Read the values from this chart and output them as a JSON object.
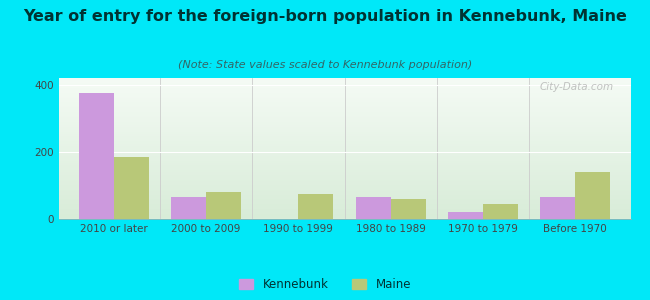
{
  "title": "Year of entry for the foreign-born population in Kennebunk, Maine",
  "subtitle": "(Note: State values scaled to Kennebunk population)",
  "categories": [
    "2010 or later",
    "2000 to 2009",
    "1990 to 1999",
    "1980 to 1989",
    "1970 to 1979",
    "Before 1970"
  ],
  "kennebunk_values": [
    375,
    65,
    0,
    65,
    20,
    65
  ],
  "maine_values": [
    185,
    80,
    75,
    60,
    45,
    140
  ],
  "kennebunk_color": "#cc99dd",
  "maine_color": "#b8c878",
  "background_outer": "#00e8f8",
  "background_inner_top": "#f5fbf5",
  "background_inner_bottom": "#d8ecd8",
  "ylim": [
    0,
    420
  ],
  "yticks": [
    0,
    200,
    400
  ],
  "bar_width": 0.38,
  "legend_kennebunk": "Kennebunk",
  "legend_maine": "Maine",
  "watermark": "City-Data.com",
  "title_fontsize": 11.5,
  "subtitle_fontsize": 8,
  "tick_fontsize": 7.5,
  "legend_fontsize": 8.5,
  "title_color": "#003333",
  "subtitle_color": "#336666",
  "tick_color": "#444444"
}
